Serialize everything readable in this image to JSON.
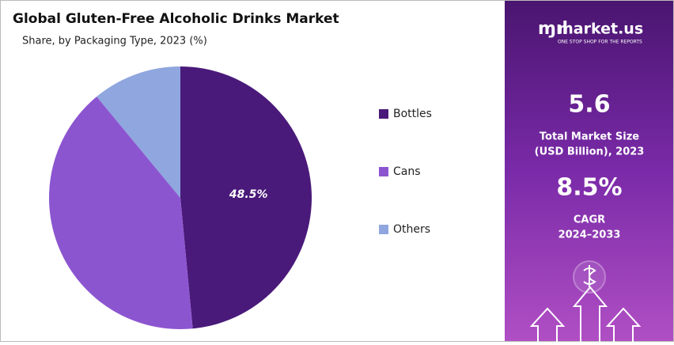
{
  "chart_data": {
    "type": "pie",
    "title": "Global Gluten-Free Alcoholic Drinks Market",
    "subtitle": "Share, by Packaging Type, 2023 (%)",
    "categories": [
      "Bottles",
      "Cans",
      "Others"
    ],
    "values": [
      48.5,
      40.5,
      11.0
    ],
    "value_labels": [
      "48.5%",
      null,
      null
    ],
    "colors": [
      "#4a1a7a",
      "#8c55d0",
      "#8fa6df"
    ],
    "legend": "right"
  },
  "sidebar": {
    "logo": "market.us",
    "tagline": "ONE STOP SHOP FOR THE REPORTS",
    "market_size": "5.6",
    "market_size_label": [
      "Total Market Size",
      "(USD Billion), 2023"
    ],
    "cagr": "8.5%",
    "cagr_label": [
      "CAGR",
      "2024–2033"
    ]
  }
}
